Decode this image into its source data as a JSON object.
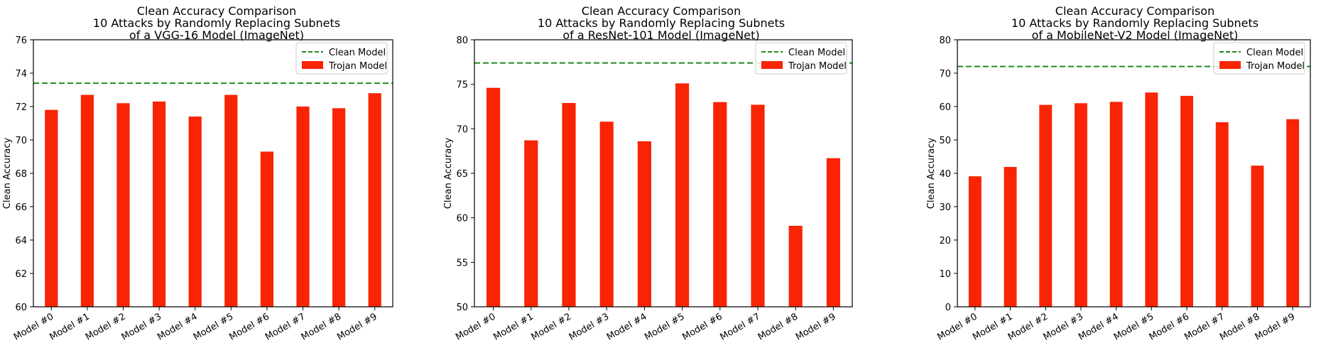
{
  "chart_data": [
    {
      "type": "bar",
      "title_lines": [
        "Clean Accuracy Comparison",
        "10 Attacks by Randomly Replacing Subnets",
        "of a VGG-16 Model (ImageNet)"
      ],
      "xlabel": "",
      "ylabel": "Clean Accuracy",
      "ylim": [
        60,
        76
      ],
      "yticks": [
        60,
        62,
        64,
        66,
        68,
        70,
        72,
        74,
        76
      ],
      "categories": [
        "Model #0",
        "Model #1",
        "Model #2",
        "Model #3",
        "Model #4",
        "Model #5",
        "Model #6",
        "Model #7",
        "Model #8",
        "Model #9"
      ],
      "series": [
        {
          "name": "Trojan Model",
          "values": [
            71.8,
            72.7,
            72.2,
            72.3,
            71.4,
            72.7,
            69.3,
            72.0,
            71.9,
            72.8
          ]
        }
      ],
      "reference_line": {
        "name": "Clean Model",
        "value": 73.4
      },
      "legend": "top-right",
      "grid": false
    },
    {
      "type": "bar",
      "title_lines": [
        "Clean Accuracy Comparison",
        "10 Attacks by Randomly Replacing Subnets",
        "of a ResNet-101 Model (ImageNet)"
      ],
      "xlabel": "",
      "ylabel": "Clean Accuracy",
      "ylim": [
        50,
        80
      ],
      "yticks": [
        50,
        55,
        60,
        65,
        70,
        75,
        80
      ],
      "categories": [
        "Model #0",
        "Model #1",
        "Model #2",
        "Model #3",
        "Model #4",
        "Model #5",
        "Model #6",
        "Model #7",
        "Model #8",
        "Model #9"
      ],
      "series": [
        {
          "name": "Trojan Model",
          "values": [
            74.6,
            68.7,
            72.9,
            70.8,
            68.6,
            75.1,
            73.0,
            72.7,
            59.1,
            66.7
          ]
        }
      ],
      "reference_line": {
        "name": "Clean Model",
        "value": 77.4
      },
      "legend": "top-right",
      "grid": false
    },
    {
      "type": "bar",
      "title_lines": [
        "Clean Accuracy Comparison",
        "10 Attacks by Randomly Replacing Subnets",
        "of a MobileNet-V2 Model (ImageNet)"
      ],
      "xlabel": "",
      "ylabel": "Clean Accuracy",
      "ylim": [
        0,
        80
      ],
      "yticks": [
        0,
        10,
        20,
        30,
        40,
        50,
        60,
        70,
        80
      ],
      "categories": [
        "Model #0",
        "Model #1",
        "Model #2",
        "Model #3",
        "Model #4",
        "Model #5",
        "Model #6",
        "Model #7",
        "Model #8",
        "Model #9"
      ],
      "series": [
        {
          "name": "Trojan Model",
          "values": [
            39.1,
            41.9,
            60.5,
            61.0,
            61.4,
            64.2,
            63.2,
            55.3,
            42.3,
            56.2
          ]
        }
      ],
      "reference_line": {
        "name": "Clean Model",
        "value": 72.0
      },
      "legend": "top-right",
      "grid": false
    }
  ],
  "colors": {
    "bar": "#f82404",
    "reference_line": "#1f8a1f",
    "axis": "#000000",
    "legend_border": "#cccccc"
  }
}
